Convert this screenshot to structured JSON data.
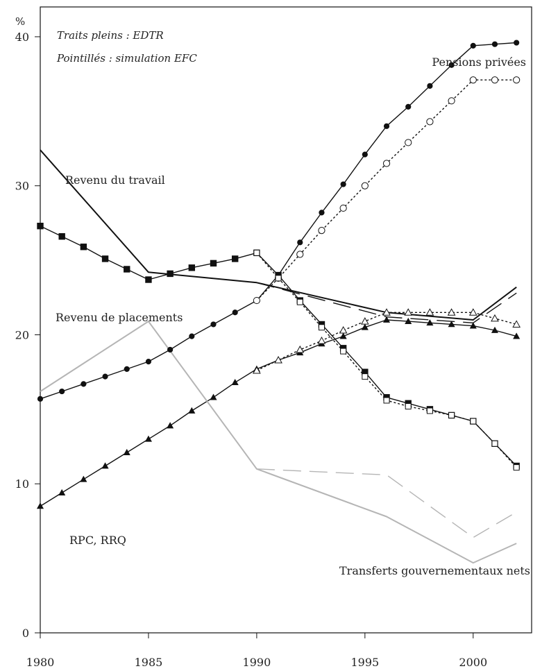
{
  "chart_data": {
    "type": "line",
    "ylabel": "%",
    "xlim": [
      1980,
      2002.7
    ],
    "ylim": [
      0,
      42
    ],
    "grid": false,
    "xticks": [
      1980,
      1985,
      1990,
      1995,
      2000
    ],
    "yticks": [
      0,
      10,
      20,
      30,
      40
    ],
    "notes": [
      "Traits pleins : EDTR",
      "Pointillés : simulation EFC"
    ],
    "series": [
      {
        "name": "Pensions privées",
        "variant": "EDTR",
        "style": "solid",
        "marker": "circle-filled",
        "color": "#111111",
        "x": [
          1980,
          1981,
          1982,
          1983,
          1984,
          1985,
          1986,
          1987,
          1988,
          1989,
          1990,
          1991,
          1992,
          1993,
          1994,
          1995,
          1996,
          1997,
          1998,
          1999,
          2000,
          2001,
          2002
        ],
        "y": [
          15.7,
          16.2,
          16.7,
          17.2,
          17.7,
          18.2,
          19.0,
          19.9,
          20.7,
          21.5,
          22.3,
          24.0,
          26.2,
          28.2,
          30.1,
          32.1,
          34.0,
          35.3,
          36.7,
          38.1,
          39.4,
          39.5,
          39.6
        ]
      },
      {
        "name": "Pensions privées",
        "variant": "simulation EFC",
        "style": "dotted",
        "marker": "circle-open",
        "color": "#111111",
        "x": [
          1990,
          1991,
          1992,
          1993,
          1994,
          1995,
          1996,
          1997,
          1998,
          1999,
          2000,
          2001,
          2002
        ],
        "y": [
          22.3,
          23.8,
          25.4,
          27.0,
          28.5,
          30.0,
          31.5,
          32.9,
          34.3,
          35.7,
          37.1,
          37.1,
          37.1
        ]
      },
      {
        "name": "Revenu de placements",
        "variant": "EDTR",
        "style": "solid",
        "marker": "square-filled",
        "color": "#111111",
        "x": [
          1980,
          1981,
          1982,
          1983,
          1984,
          1985,
          1986,
          1987,
          1988,
          1989,
          1990,
          1991,
          1992,
          1993,
          1994,
          1995,
          1996,
          1997,
          1998,
          1999,
          2000,
          2001,
          2002
        ],
        "y": [
          27.3,
          26.6,
          25.9,
          25.1,
          24.4,
          23.7,
          24.1,
          24.5,
          24.8,
          25.1,
          25.5,
          24.0,
          22.3,
          20.7,
          19.1,
          17.5,
          15.8,
          15.4,
          15.0,
          14.6,
          14.2,
          12.7,
          11.2
        ]
      },
      {
        "name": "Revenu de placements",
        "variant": "simulation EFC",
        "style": "dotted",
        "marker": "square-open",
        "color": "#111111",
        "x": [
          1990,
          1991,
          1992,
          1993,
          1994,
          1995,
          1996,
          1997,
          1998,
          1999,
          2000,
          2001,
          2002
        ],
        "y": [
          25.5,
          23.8,
          22.2,
          20.5,
          18.9,
          17.2,
          15.6,
          15.2,
          14.9,
          14.6,
          14.2,
          12.7,
          11.1
        ]
      },
      {
        "name": "RPC, RRQ",
        "variant": "EDTR",
        "style": "solid",
        "marker": "triangle-filled",
        "color": "#111111",
        "x": [
          1980,
          1981,
          1982,
          1983,
          1984,
          1985,
          1986,
          1987,
          1988,
          1989,
          1990,
          1991,
          1992,
          1993,
          1994,
          1995,
          1996,
          1997,
          1998,
          1999,
          2000,
          2001,
          2002
        ],
        "y": [
          8.5,
          9.4,
          10.3,
          11.2,
          12.1,
          13.0,
          13.9,
          14.9,
          15.8,
          16.8,
          17.7,
          18.3,
          18.8,
          19.4,
          19.9,
          20.5,
          21.0,
          20.9,
          20.8,
          20.7,
          20.6,
          20.3,
          19.9
        ]
      },
      {
        "name": "RPC, RRQ",
        "variant": "simulation EFC",
        "style": "dotted",
        "marker": "triangle-open",
        "color": "#111111",
        "x": [
          1990,
          1991,
          1992,
          1993,
          1994,
          1995,
          1996,
          1997,
          1998,
          1999,
          2000,
          2001,
          2002
        ],
        "y": [
          17.6,
          18.3,
          19.0,
          19.6,
          20.3,
          20.9,
          21.5,
          21.5,
          21.5,
          21.5,
          21.5,
          21.1,
          20.7
        ]
      },
      {
        "name": "Revenu du travail",
        "variant": "EDTR",
        "style": "solid",
        "marker": "none",
        "color": "#111111",
        "x": [
          1980,
          1985,
          1990,
          1996,
          2000,
          2002
        ],
        "y": [
          32.4,
          24.2,
          23.5,
          21.5,
          21.0,
          23.2
        ]
      },
      {
        "name": "Revenu du travail",
        "variant": "simulation EFC",
        "style": "dashed",
        "marker": "none",
        "color": "#111111",
        "x": [
          1990,
          1996,
          2000,
          2002
        ],
        "y": [
          23.5,
          21.2,
          20.8,
          22.8
        ]
      },
      {
        "name": "Transferts gouvernementaux nets",
        "variant": "EDTR",
        "style": "solid",
        "marker": "none",
        "color": "#b5b5b5",
        "x": [
          1980,
          1985,
          1990,
          1996,
          2000,
          2002
        ],
        "y": [
          16.2,
          20.9,
          11.0,
          7.8,
          4.7,
          6.0
        ]
      },
      {
        "name": "Transferts gouvernementaux nets",
        "variant": "simulation EFC",
        "style": "dashed",
        "marker": "none",
        "color": "#b5b5b5",
        "x": [
          1990,
          1996,
          2000,
          2002
        ],
        "y": [
          11.0,
          10.6,
          6.4,
          8.1
        ]
      }
    ],
    "labels": [
      {
        "text": "Pensions privées",
        "anchor": "end"
      },
      {
        "text": "Revenu du travail",
        "anchor": "start"
      },
      {
        "text": "Revenu de placements",
        "anchor": "start"
      },
      {
        "text": "RPC, RRQ",
        "anchor": "start"
      },
      {
        "text": "Transferts gouvernementaux nets",
        "anchor": "end"
      }
    ]
  }
}
